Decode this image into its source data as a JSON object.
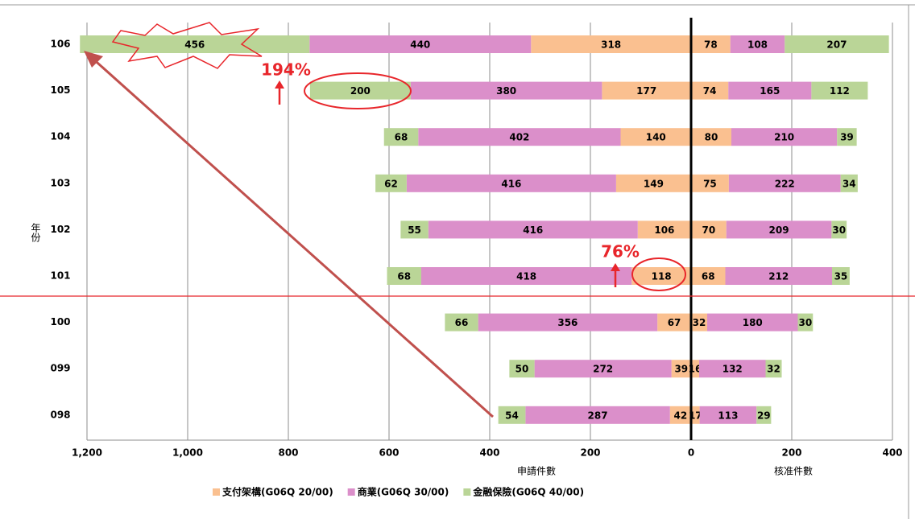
{
  "chart_data": {
    "type": "butterfly-stacked-bar",
    "categories": [
      "106",
      "105",
      "104",
      "103",
      "102",
      "101",
      "100",
      "099",
      "098"
    ],
    "series": [
      {
        "name": "支付架構(G06Q 20/00)",
        "color": "#fac090",
        "applied": [
          318,
          177,
          140,
          149,
          106,
          118,
          67,
          39,
          42
        ],
        "approved": [
          78,
          74,
          80,
          75,
          70,
          68,
          32,
          16,
          17
        ]
      },
      {
        "name": "商業(G06Q 30/00)",
        "color": "#db8fca",
        "applied": [
          440,
          380,
          402,
          416,
          416,
          418,
          356,
          272,
          287
        ],
        "approved": [
          108,
          165,
          210,
          222,
          209,
          212,
          180,
          132,
          113
        ]
      },
      {
        "name": "金融保險(G06Q 40/00)",
        "color": "#bad597",
        "applied": [
          456,
          200,
          68,
          62,
          55,
          68,
          66,
          50,
          54
        ],
        "approved": [
          207,
          112,
          39,
          34,
          30,
          35,
          30,
          32,
          29
        ]
      }
    ],
    "xlim": [
      -1200,
      400
    ],
    "xticks": [
      {
        "value": -1200,
        "label": "1,200"
      },
      {
        "value": -1000,
        "label": "1,000"
      },
      {
        "value": -800,
        "label": "800"
      },
      {
        "value": -600,
        "label": "600"
      },
      {
        "value": -400,
        "label": "400"
      },
      {
        "value": -200,
        "label": "200"
      },
      0,
      200,
      400
    ],
    "left_axis_label": "申請件數",
    "right_axis_label": "核准件數",
    "y_axis_label": "年份",
    "annotations": [
      "194%",
      "76%"
    ],
    "grid": true
  }
}
